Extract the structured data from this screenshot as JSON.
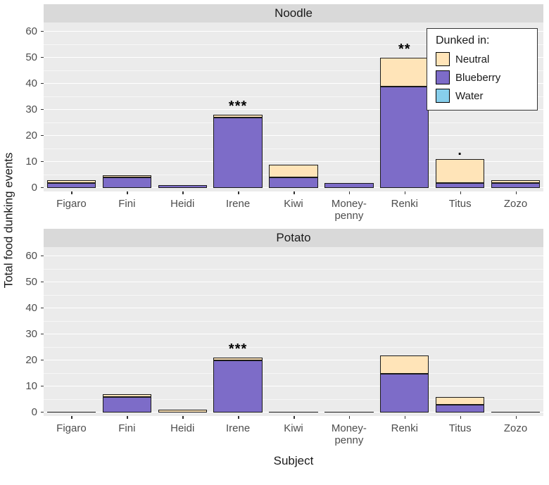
{
  "chart_data": {
    "type": "bar",
    "stacked": true,
    "xlabel": "Subject",
    "ylabel": "Total food dunking events",
    "ylim": [
      0,
      60
    ],
    "yticks": [
      0,
      10,
      20,
      30,
      40,
      50,
      60
    ],
    "categories": [
      "Figaro",
      "Fini",
      "Heidi",
      "Irene",
      "Kiwi",
      "Money-penny",
      "Renki",
      "Titus",
      "Zozo"
    ],
    "category_label_lines": [
      [
        "Figaro"
      ],
      [
        "Fini"
      ],
      [
        "Heidi"
      ],
      [
        "Irene"
      ],
      [
        "Kiwi"
      ],
      [
        "Money-",
        "penny"
      ],
      [
        "Renki"
      ],
      [
        "Titus"
      ],
      [
        "Zozo"
      ]
    ],
    "legend": {
      "title": "Dunked in:",
      "items": [
        {
          "label": "Neutral",
          "color": "#FFE4B8"
        },
        {
          "label": "Blueberry",
          "color": "#7D6CC8"
        },
        {
          "label": "Water",
          "color": "#87CEEB"
        }
      ]
    },
    "stack_order_bottom_to_top": [
      "Blueberry",
      "Neutral",
      "Water"
    ],
    "facets": [
      {
        "title": "Noodle",
        "series": [
          {
            "name": "Neutral",
            "values": [
              1,
              1,
              0,
              1,
              5,
              0,
              11,
              9,
              1
            ]
          },
          {
            "name": "Blueberry",
            "values": [
              2,
              4,
              1,
              27,
              4,
              2,
              39,
              2,
              2
            ]
          },
          {
            "name": "Water",
            "values": [
              0,
              0,
              0,
              0,
              0,
              0,
              0,
              0,
              0
            ]
          }
        ],
        "annotations": [
          {
            "category": "Irene",
            "text": "***"
          },
          {
            "category": "Renki",
            "text": "**"
          },
          {
            "category": "Titus",
            "text": "."
          }
        ]
      },
      {
        "title": "Potato",
        "series": [
          {
            "name": "Neutral",
            "values": [
              0,
              1,
              1,
              1,
              0,
              0,
              7,
              3,
              0
            ]
          },
          {
            "name": "Blueberry",
            "values": [
              0,
              6,
              0,
              20,
              0,
              0,
              15,
              3,
              0
            ]
          },
          {
            "name": "Water",
            "values": [
              0,
              0,
              0,
              0,
              0,
              0,
              0,
              0,
              0
            ]
          }
        ],
        "annotations": [
          {
            "category": "Irene",
            "text": "***"
          }
        ]
      }
    ],
    "colors": {
      "panel_bg": "#EBEBEB",
      "strip_bg": "#D9D9D9",
      "grid_major": "#FFFFFF",
      "bar_stroke": "#1A1A1A",
      "axis_text": "#4D4D4D",
      "title_text": "#1A1A1A"
    }
  }
}
